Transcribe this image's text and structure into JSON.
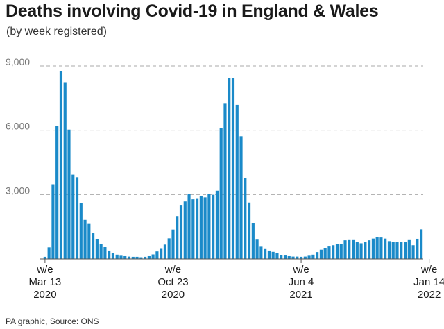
{
  "header": {
    "title": "Deaths involving Covid-19 in England & Wales",
    "subtitle": "(by week registered)"
  },
  "footer": {
    "source": "PA graphic, Source: ONS"
  },
  "colors": {
    "bar": "#1a8ac9",
    "grid": "#aaaaaa",
    "tick_text": "#777777"
  },
  "chart_data": {
    "type": "bar",
    "title": "Deaths involving Covid-19 in England & Wales",
    "subtitle": "(by week registered)",
    "xlabel": "",
    "ylabel": "",
    "ylim": [
      0,
      9000
    ],
    "y_ticks": [
      {
        "value": 3000,
        "label": "3,000"
      },
      {
        "value": 6000,
        "label": "6,000"
      },
      {
        "value": 9000,
        "label": "9,000"
      }
    ],
    "grid": true,
    "x_ticks": [
      {
        "index": 0,
        "lines": [
          "w/e",
          "Mar 13",
          "2020"
        ]
      },
      {
        "index": 32,
        "lines": [
          "w/e",
          "Oct 23",
          "2020"
        ]
      },
      {
        "index": 64,
        "lines": [
          "w/e",
          "Jun 4",
          "2021"
        ]
      },
      {
        "index": 96,
        "lines": [
          "w/e",
          "Jan 14",
          "2022"
        ]
      }
    ],
    "values": [
      100,
      540,
      3480,
      6210,
      8760,
      8240,
      6030,
      3930,
      3810,
      2590,
      1820,
      1630,
      1230,
      920,
      680,
      550,
      390,
      260,
      200,
      150,
      130,
      110,
      100,
      100,
      80,
      100,
      130,
      210,
      350,
      470,
      670,
      960,
      1370,
      2000,
      2490,
      2680,
      3010,
      2780,
      2830,
      2930,
      2870,
      3020,
      2990,
      3180,
      6090,
      7240,
      8430,
      8430,
      7190,
      5720,
      3760,
      2630,
      1670,
      900,
      570,
      460,
      390,
      330,
      260,
      190,
      160,
      130,
      110,
      110,
      100,
      110,
      150,
      200,
      320,
      430,
      510,
      580,
      640,
      680,
      690,
      870,
      880,
      880,
      780,
      730,
      780,
      870,
      950,
      1030,
      1000,
      950,
      830,
      800,
      790,
      790,
      780,
      880,
      640,
      940,
      1380
    ]
  }
}
